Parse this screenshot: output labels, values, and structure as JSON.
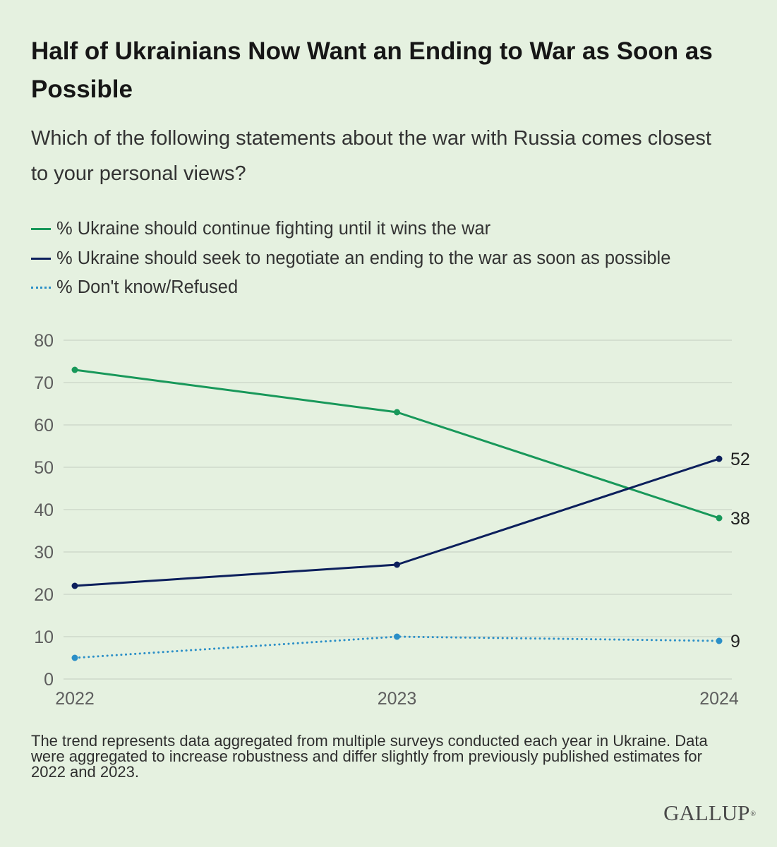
{
  "chart_data": {
    "type": "line",
    "title": "Half of Ukrainians Now Want an Ending to War as Soon as Possible",
    "subtitle": "Which of the following statements about the war with Russia comes closest to your personal views?",
    "x": [
      "2022",
      "2023",
      "2024"
    ],
    "series": [
      {
        "name": "% Ukraine should continue fighting until it wins the war",
        "values": [
          73,
          63,
          38
        ],
        "color": "#18985a",
        "line_style": "solid"
      },
      {
        "name": "% Ukraine should seek to negotiate an ending to the war as soon as possible",
        "values": [
          22,
          27,
          52
        ],
        "color": "#0c1f5c",
        "line_style": "solid"
      },
      {
        "name": "% Don't know/Refused",
        "values": [
          5,
          10,
          9
        ],
        "color": "#2b8fc7",
        "line_style": "dotted"
      }
    ],
    "yticks": [
      0,
      10,
      20,
      30,
      40,
      50,
      60,
      70,
      80
    ],
    "ylim": [
      0,
      80
    ],
    "grid": true,
    "legend": "top-left",
    "end_labels": true
  },
  "footnote": "The trend represents data aggregated from multiple surveys conducted each year in Ukraine. Data were aggregated to increase robustness and differ slightly from previously published estimates for 2022 and 2023.",
  "brand": {
    "name": "GALLUP",
    "mark": "®"
  }
}
